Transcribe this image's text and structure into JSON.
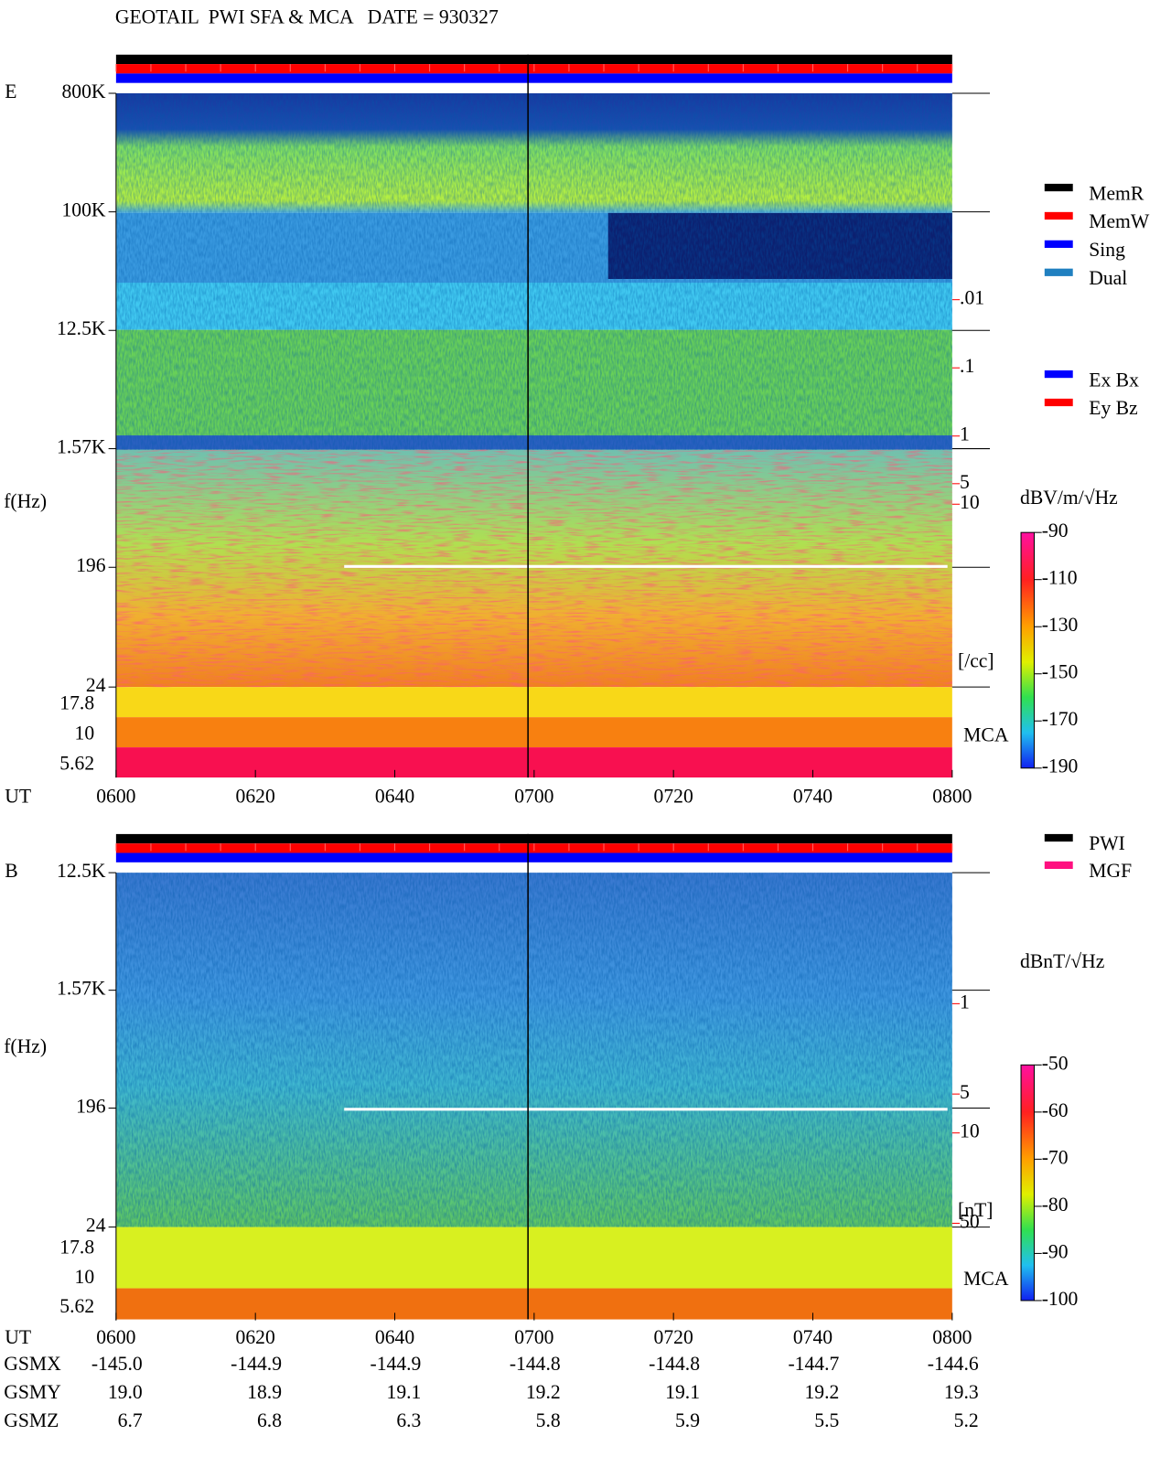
{
  "header": {
    "title": "GEOTAIL  PWI SFA & MCA   DATE = 930327"
  },
  "chart_data": [
    {
      "type": "spectrogram",
      "panel_label": "E",
      "ylabel": "f(Hz)",
      "yscale": "log",
      "xlabel": "UT",
      "ylim": [
        24,
        800000
      ],
      "yticks": [
        {
          "value": 800000,
          "label": "800K"
        },
        {
          "value": 100000,
          "label": "100K"
        },
        {
          "value": 12500,
          "label": "12.5K"
        },
        {
          "value": 1570,
          "label": "1.57K"
        },
        196,
        24
      ],
      "mca_label": "MCA",
      "mca_channels": [
        17.8,
        10,
        5.62
      ],
      "categories": [
        "0600",
        "0620",
        "0640",
        "0700",
        "0720",
        "0740",
        "0800"
      ],
      "legend": [
        {
          "name": "MemR",
          "color": "#000000"
        },
        {
          "name": "MemW",
          "color": "#ff0000"
        },
        {
          "name": "Sing",
          "color": "#0000ff"
        },
        {
          "name": "Dual",
          "color": "#2080c0"
        }
      ],
      "legend2": [
        {
          "name": "Ex Bx",
          "color": "#0000ff"
        },
        {
          "name": "Ey Bz",
          "color": "#ff0000"
        }
      ],
      "density_scale": {
        "label": "[/cc]",
        "ylim": [
          0.01,
          10
        ],
        "yticks": [
          10,
          5,
          1,
          {
            "value": 0.1,
            "label": ".1"
          },
          {
            "value": 0.01,
            "label": ".01"
          }
        ],
        "color": "#ff0000"
      },
      "colorbar": {
        "label": "dBV/m/√Hz",
        "lim": [
          -190,
          -90
        ],
        "ticks": [
          -90,
          -110,
          -130,
          -150,
          -170,
          -190
        ]
      }
    },
    {
      "type": "spectrogram",
      "panel_label": "B",
      "ylabel": "f(Hz)",
      "yscale": "log",
      "xlabel": "UT",
      "ylim": [
        24,
        12500
      ],
      "yticks": [
        {
          "value": 12500,
          "label": "12.5K"
        },
        {
          "value": 1570,
          "label": "1.57K"
        },
        196,
        24
      ],
      "mca_label": "MCA",
      "mca_channels": [
        17.8,
        10,
        5.62
      ],
      "categories": [
        "0600",
        "0620",
        "0640",
        "0700",
        "0720",
        "0740",
        "0800"
      ],
      "legend": [
        {
          "name": "PWI",
          "color": "#000000"
        },
        {
          "name": "MGF",
          "color": "#ff1080"
        }
      ],
      "density_scale": {
        "label": "[nT]",
        "ylim": [
          1,
          50
        ],
        "yticks": [
          50,
          10,
          5,
          1
        ],
        "color": "#ff0000"
      },
      "colorbar": {
        "label": "dBnT/√Hz",
        "lim": [
          -100,
          -50
        ],
        "ticks": [
          -50,
          -60,
          -70,
          -80,
          -90,
          -100
        ]
      }
    }
  ],
  "orbit": {
    "rows": [
      {
        "label": "GSMX",
        "values": [
          "-145.0",
          "-144.9",
          "-144.9",
          "-144.8",
          "-144.8",
          "-144.7",
          "-144.6"
        ]
      },
      {
        "label": "GSMY",
        "values": [
          "19.0",
          "18.9",
          "19.1",
          "19.2",
          "19.1",
          "19.2",
          "19.3"
        ]
      },
      {
        "label": "GSMZ",
        "values": [
          "6.7",
          "6.8",
          "6.3",
          "5.8",
          "5.9",
          "5.5",
          "5.2"
        ]
      }
    ]
  }
}
